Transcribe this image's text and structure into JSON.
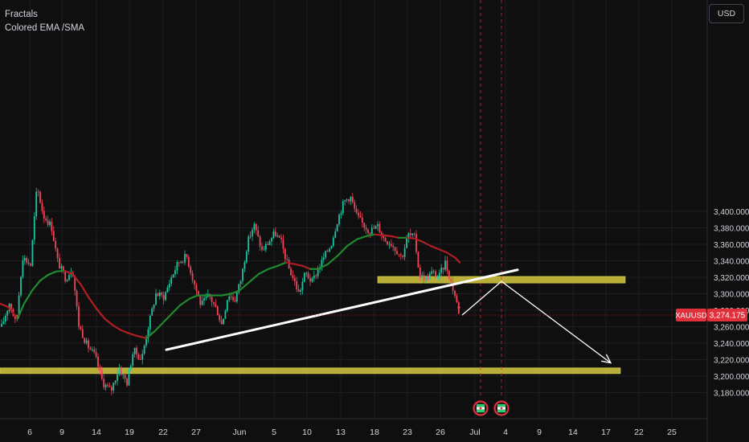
{
  "legend": {
    "indicator_1": "Fractals",
    "indicator_2": "Colored EMA /SMA"
  },
  "currency_button": "USD",
  "price_tag": {
    "symbol": "XAUUSD",
    "price": "3,274.175",
    "color": "#e0303c"
  },
  "colors": {
    "background": "#0f0f0f",
    "up_candle": "#1ec3a0",
    "down_candle": "#f0465a",
    "ema_up": "#1f8a2e",
    "ema_down": "#b01e24",
    "zone_fill": "#c8bc3b",
    "trendline": "#ffffff",
    "axis_text": "#d1d4dc",
    "grid": "#1c1e24"
  },
  "chart_data": {
    "type": "candlestick",
    "symbol": "XAUUSD",
    "last_price": 3274.175,
    "y_axis": {
      "ticks": [
        3180,
        3200,
        3220,
        3240,
        3260,
        3280,
        3300,
        3320,
        3340,
        3360,
        3380,
        3400
      ],
      "tick_labels": [
        "3,180.000",
        "3,200.000",
        "3,220.000",
        "3,240.000",
        "3,260.000",
        "3,280.000",
        "3,300.000",
        "3,320.000",
        "3,340.000",
        "3,360.000",
        "3,380.000",
        "3,400.000"
      ],
      "range": [
        3172,
        3428
      ]
    },
    "x_axis": {
      "tick_labels": [
        "6",
        "9",
        "14",
        "19",
        "22",
        "27",
        "Jun",
        "5",
        "10",
        "13",
        "18",
        "23",
        "26",
        "Jul",
        "4",
        "9",
        "14",
        "17",
        "22",
        "25"
      ]
    },
    "price_path": [
      [
        2,
        3260
      ],
      [
        12,
        3290
      ],
      [
        20,
        3262
      ],
      [
        28,
        3345
      ],
      [
        38,
        3335
      ],
      [
        46,
        3430
      ],
      [
        54,
        3395
      ],
      [
        64,
        3382
      ],
      [
        72,
        3338
      ],
      [
        82,
        3318
      ],
      [
        90,
        3332
      ],
      [
        98,
        3262
      ],
      [
        108,
        3238
      ],
      [
        118,
        3225
      ],
      [
        128,
        3192
      ],
      [
        138,
        3182
      ],
      [
        148,
        3210
      ],
      [
        158,
        3192
      ],
      [
        166,
        3232
      ],
      [
        176,
        3220
      ],
      [
        184,
        3258
      ],
      [
        194,
        3300
      ],
      [
        204,
        3296
      ],
      [
        214,
        3322
      ],
      [
        222,
        3338
      ],
      [
        232,
        3346
      ],
      [
        240,
        3318
      ],
      [
        250,
        3286
      ],
      [
        260,
        3298
      ],
      [
        270,
        3280
      ],
      [
        276,
        3262
      ],
      [
        284,
        3300
      ],
      [
        292,
        3292
      ],
      [
        300,
        3318
      ],
      [
        308,
        3362
      ],
      [
        316,
        3384
      ],
      [
        326,
        3352
      ],
      [
        334,
        3362
      ],
      [
        342,
        3374
      ],
      [
        350,
        3362
      ],
      [
        358,
        3334
      ],
      [
        366,
        3316
      ],
      [
        372,
        3300
      ],
      [
        380,
        3326
      ],
      [
        388,
        3314
      ],
      [
        396,
        3330
      ],
      [
        404,
        3346
      ],
      [
        412,
        3360
      ],
      [
        420,
        3390
      ],
      [
        428,
        3412
      ],
      [
        436,
        3418
      ],
      [
        444,
        3394
      ],
      [
        452,
        3384
      ],
      [
        460,
        3376
      ],
      [
        470,
        3382
      ],
      [
        478,
        3366
      ],
      [
        486,
        3362
      ],
      [
        494,
        3352
      ],
      [
        500,
        3344
      ],
      [
        508,
        3372
      ],
      [
        516,
        3368
      ],
      [
        522,
        3322
      ],
      [
        530,
        3318
      ],
      [
        538,
        3326
      ],
      [
        546,
        3320
      ],
      [
        554,
        3338
      ],
      [
        560,
        3318
      ],
      [
        566,
        3298
      ],
      [
        572,
        3274
      ]
    ],
    "ema": [
      [
        0,
        3288
      ],
      [
        10,
        3284
      ],
      [
        22,
        3270
      ],
      [
        30,
        3288
      ],
      [
        40,
        3304
      ],
      [
        50,
        3316
      ],
      [
        60,
        3323
      ],
      [
        70,
        3327
      ],
      [
        80,
        3328
      ],
      [
        90,
        3324
      ],
      [
        100,
        3312
      ],
      [
        110,
        3296
      ],
      [
        120,
        3282
      ],
      [
        130,
        3270
      ],
      [
        140,
        3262
      ],
      [
        150,
        3256
      ],
      [
        160,
        3252
      ],
      [
        170,
        3249
      ],
      [
        182,
        3246
      ],
      [
        192,
        3254
      ],
      [
        204,
        3266
      ],
      [
        214,
        3276
      ],
      [
        224,
        3286
      ],
      [
        236,
        3294
      ],
      [
        246,
        3298
      ],
      [
        256,
        3298
      ],
      [
        266,
        3298
      ],
      [
        276,
        3298
      ],
      [
        288,
        3300
      ],
      [
        298,
        3304
      ],
      [
        310,
        3314
      ],
      [
        322,
        3324
      ],
      [
        334,
        3330
      ],
      [
        346,
        3334
      ],
      [
        356,
        3338
      ],
      [
        366,
        3336
      ],
      [
        376,
        3334
      ],
      [
        386,
        3330
      ],
      [
        396,
        3330
      ],
      [
        408,
        3336
      ],
      [
        420,
        3346
      ],
      [
        432,
        3358
      ],
      [
        444,
        3366
      ],
      [
        456,
        3370
      ],
      [
        466,
        3372
      ],
      [
        476,
        3371
      ],
      [
        486,
        3370
      ],
      [
        496,
        3368
      ],
      [
        506,
        3368
      ],
      [
        516,
        3367
      ],
      [
        526,
        3363
      ],
      [
        536,
        3358
      ],
      [
        546,
        3354
      ],
      [
        556,
        3350
      ],
      [
        566,
        3344
      ],
      [
        572,
        3338
      ]
    ],
    "zones": [
      {
        "name": "resistance-zone",
        "x_from": 470,
        "x_to": 778,
        "price_from": 3313,
        "price_to": 3321
      },
      {
        "name": "support-zone",
        "x_from": 0,
        "x_to": 772,
        "price_from": 3203,
        "price_to": 3210
      }
    ],
    "trendline": {
      "from": [
        207,
        3232
      ],
      "to": [
        644,
        3329
      ]
    },
    "projection": [
      [
        575,
        3274
      ],
      [
        624,
        3315
      ],
      [
        760,
        3216
      ]
    ],
    "event_markers": [
      598,
      624
    ],
    "grid": true
  }
}
